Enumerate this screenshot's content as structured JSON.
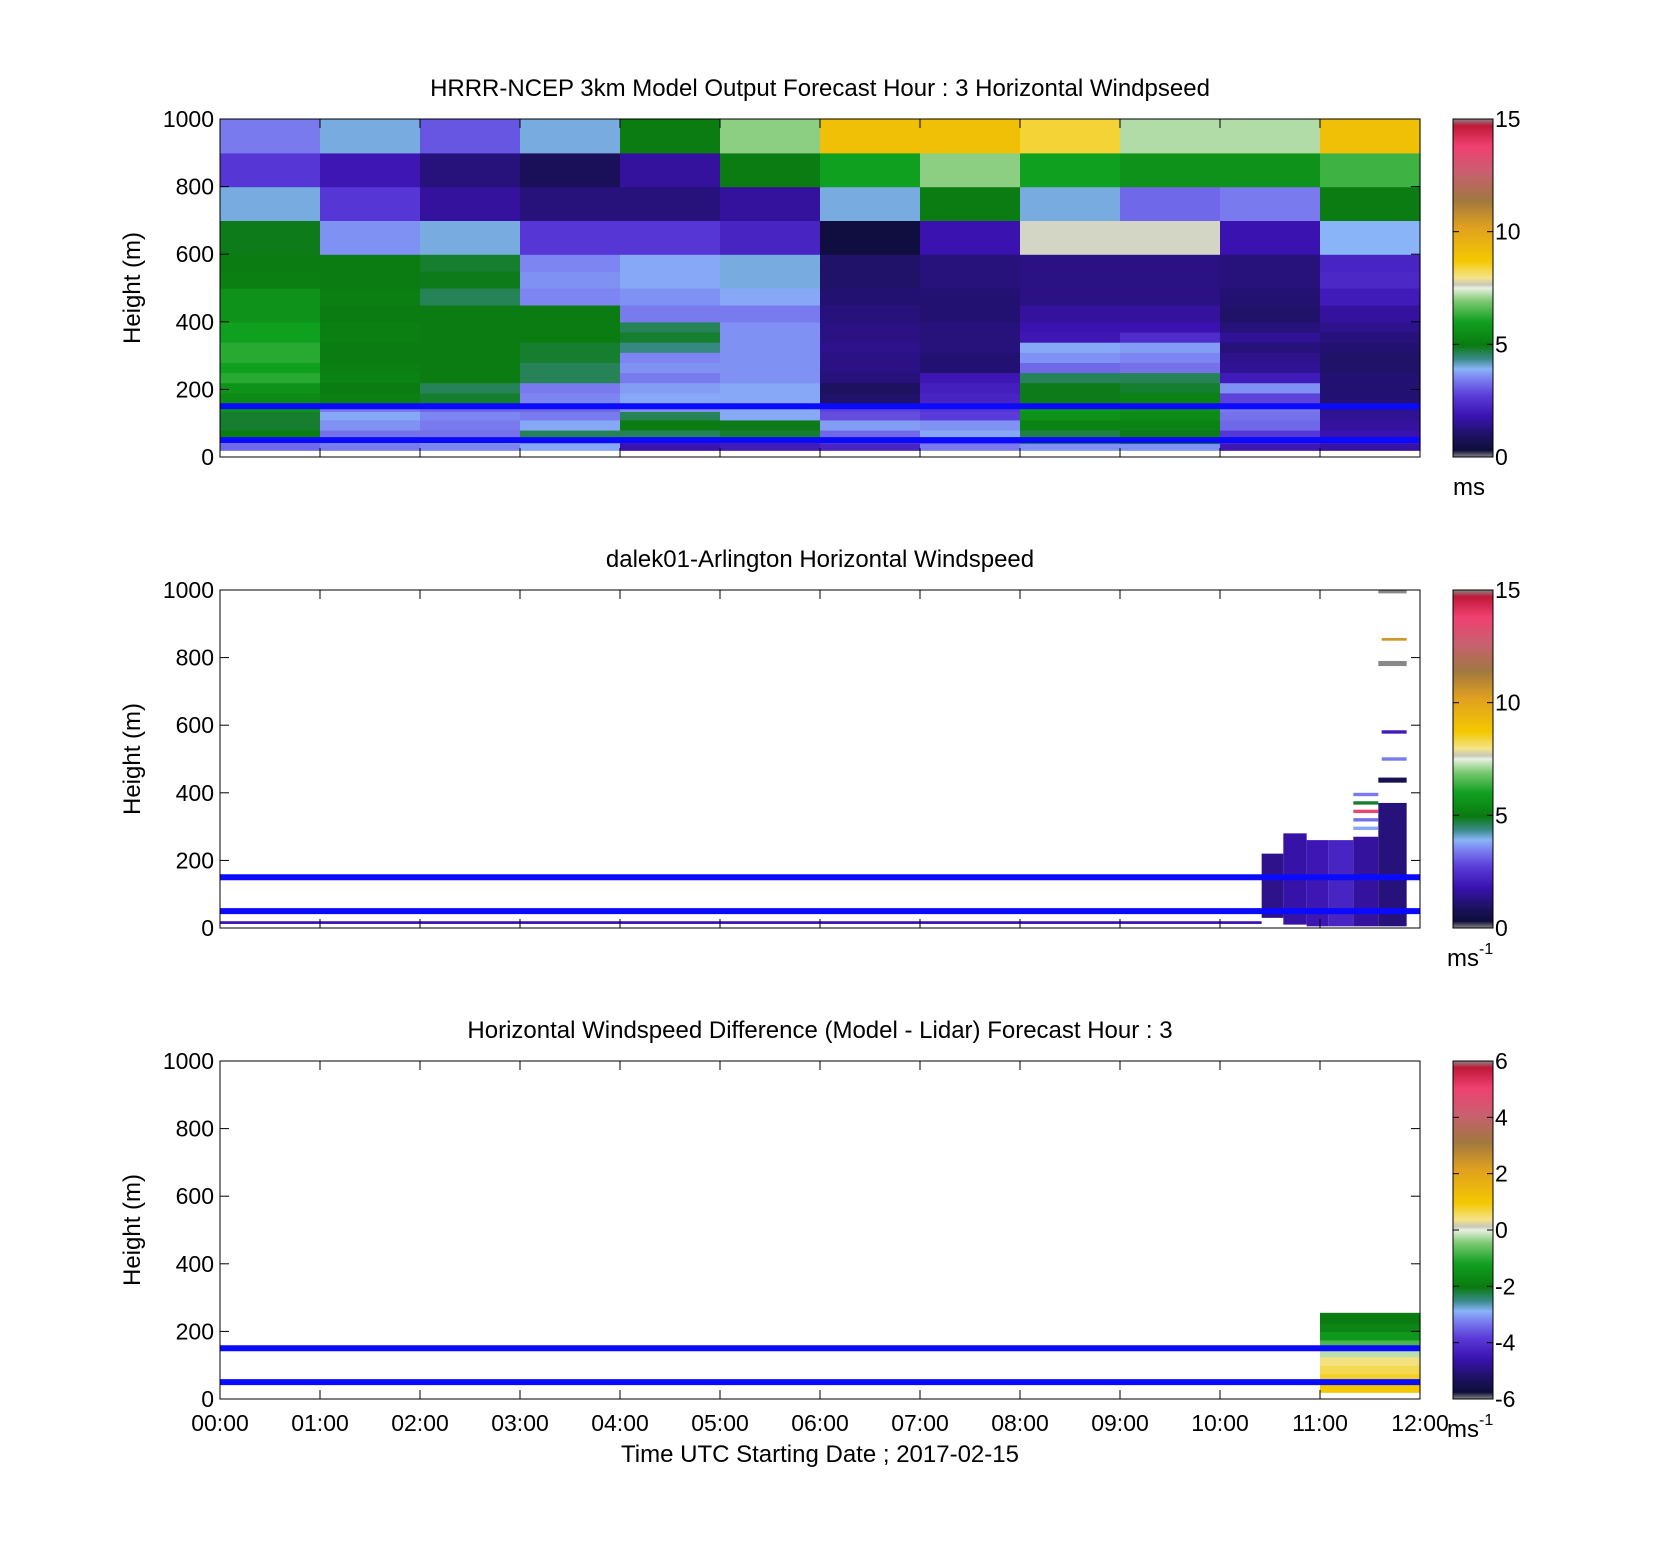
{
  "figure": {
    "xlabel": "Time UTC  Starting Date ; 2017-02-15",
    "x_ticks": [
      "00:00",
      "01:00",
      "02:00",
      "03:00",
      "04:00",
      "05:00",
      "06:00",
      "07:00",
      "08:00",
      "09:00",
      "10:00",
      "11:00",
      "12:00"
    ]
  },
  "colors": {
    "reference_line": "#0a0aff",
    "windspeed_scale": [
      [
        0.0,
        "#888888"
      ],
      [
        0.02,
        "#0d0d3a"
      ],
      [
        0.06,
        "#1d1160"
      ],
      [
        0.12,
        "#3a12b0"
      ],
      [
        0.18,
        "#5a3ad8"
      ],
      [
        0.23,
        "#7a7ff0"
      ],
      [
        0.26,
        "#8ab4f8"
      ],
      [
        0.29,
        "#3a8a8a"
      ],
      [
        0.33,
        "#0a7a10"
      ],
      [
        0.4,
        "#10a020"
      ],
      [
        0.46,
        "#7ac870"
      ],
      [
        0.5,
        "#e8f0e0"
      ],
      [
        0.51,
        "#c8c8b8"
      ],
      [
        0.53,
        "#f4e48a"
      ],
      [
        0.58,
        "#f4c800"
      ],
      [
        0.68,
        "#e0a020"
      ],
      [
        0.76,
        "#a07840"
      ],
      [
        0.84,
        "#c86070"
      ],
      [
        0.92,
        "#f04070"
      ],
      [
        0.98,
        "#c01838"
      ],
      [
        1.0,
        "#888888"
      ]
    ]
  },
  "chart_data": [
    {
      "type": "heatmap",
      "title": "HRRR-NCEP 3km Model Output   Forecast Hour : 3 Horizontal Windpseed",
      "ylabel": "Height (m)",
      "xlim": [
        "00:00",
        "12:00"
      ],
      "ylim": [
        0,
        1000
      ],
      "y_ticks": [
        0,
        200,
        400,
        600,
        800,
        1000
      ],
      "colorbar": {
        "min": 0,
        "max": 15,
        "ticks": [
          0,
          5,
          10,
          15
        ],
        "unit": "ms",
        "unit_sup": ""
      },
      "reference_lines_height_m": [
        50,
        150
      ],
      "time_columns": [
        "00:00",
        "01:00",
        "02:00",
        "03:00",
        "04:00",
        "05:00",
        "06:00",
        "07:00",
        "08:00",
        "09:00",
        "10:00",
        "11:00"
      ],
      "height_bins_m": [
        [
          20,
          40
        ],
        [
          40,
          60
        ],
        [
          60,
          80
        ],
        [
          80,
          110
        ],
        [
          110,
          135
        ],
        [
          135,
          160
        ],
        [
          160,
          190
        ],
        [
          190,
          220
        ],
        [
          220,
          250
        ],
        [
          250,
          280
        ],
        [
          280,
          310
        ],
        [
          310,
          340
        ],
        [
          340,
          370
        ],
        [
          370,
          400
        ],
        [
          400,
          450
        ],
        [
          450,
          500
        ],
        [
          500,
          550
        ],
        [
          550,
          600
        ],
        [
          600,
          700
        ],
        [
          700,
          800
        ],
        [
          800,
          900
        ],
        [
          900,
          1000
        ]
      ],
      "windspeed_ms": [
        [
          3.2,
          3.4,
          3.5,
          3.8,
          1.8,
          2.0,
          2.2,
          3.4,
          3.6,
          3.6,
          1.9,
          1.7
        ],
        [
          3.4,
          3.6,
          3.8,
          3.6,
          1.9,
          2.1,
          2.6,
          3.0,
          4.6,
          4.8,
          2.3,
          2.0
        ],
        [
          5.0,
          3.3,
          3.3,
          4.6,
          4.6,
          4.8,
          3.2,
          3.8,
          4.7,
          4.9,
          2.6,
          1.8
        ],
        [
          4.8,
          3.6,
          3.4,
          3.8,
          5.0,
          4.9,
          3.7,
          3.6,
          5.2,
          5.2,
          3.2,
          1.6
        ],
        [
          4.8,
          3.8,
          3.5,
          3.4,
          4.6,
          3.8,
          2.9,
          2.7,
          5.6,
          5.4,
          3.3,
          1.5
        ],
        [
          5.6,
          3.4,
          3.2,
          3.2,
          3.6,
          3.8,
          2.8,
          2.6,
          5.8,
          5.6,
          3.4,
          1.4
        ],
        [
          5.4,
          5.1,
          4.8,
          3.5,
          3.8,
          3.8,
          1.0,
          2.2,
          4.9,
          5.2,
          2.8,
          1.1
        ],
        [
          5.6,
          5.0,
          4.6,
          3.4,
          3.7,
          3.8,
          0.9,
          2.1,
          4.9,
          4.8,
          3.6,
          1.1
        ],
        [
          6.2,
          5.2,
          5.0,
          4.6,
          3.4,
          3.6,
          1.2,
          1.9,
          4.6,
          4.6,
          2.0,
          1.1
        ],
        [
          6.0,
          5.1,
          5.0,
          4.6,
          3.6,
          3.6,
          1.3,
          1.1,
          3.2,
          3.3,
          1.5,
          1.0
        ],
        [
          6.2,
          5.0,
          5.0,
          4.8,
          3.5,
          3.6,
          1.3,
          1.1,
          3.6,
          3.5,
          1.4,
          1.0
        ],
        [
          6.2,
          5.0,
          5.0,
          4.8,
          4.4,
          3.6,
          1.4,
          1.2,
          3.8,
          3.7,
          1.2,
          1.1
        ],
        [
          6.0,
          5.1,
          5.0,
          5.0,
          4.8,
          3.6,
          1.3,
          1.2,
          1.9,
          2.4,
          1.5,
          1.2
        ],
        [
          6.0,
          5.1,
          5.0,
          5.0,
          4.6,
          3.6,
          1.3,
          1.2,
          1.8,
          1.8,
          1.2,
          1.4
        ],
        [
          5.6,
          5.0,
          5.0,
          5.0,
          3.4,
          3.4,
          1.2,
          1.1,
          1.6,
          1.6,
          1.0,
          1.6
        ],
        [
          5.6,
          5.1,
          4.6,
          3.5,
          3.6,
          3.8,
          1.1,
          1.1,
          1.3,
          1.3,
          1.1,
          2.0
        ],
        [
          5.1,
          5.0,
          4.9,
          3.6,
          3.8,
          4.0,
          1.0,
          1.2,
          1.3,
          1.3,
          1.2,
          2.3
        ],
        [
          5.0,
          5.0,
          4.8,
          3.5,
          3.8,
          4.0,
          1.0,
          1.2,
          1.3,
          1.3,
          1.2,
          2.2
        ],
        [
          4.9,
          3.6,
          4.0,
          2.6,
          2.6,
          2.2,
          0.4,
          1.8,
          7.6,
          7.6,
          1.8,
          3.9
        ],
        [
          4.0,
          2.6,
          1.6,
          1.2,
          1.2,
          1.6,
          4.0,
          5.0,
          4.0,
          3.2,
          3.4,
          5.0
        ],
        [
          2.6,
          1.9,
          1.2,
          0.8,
          1.6,
          5.0,
          6.0,
          7.0,
          6.0,
          5.6,
          5.6,
          6.4
        ],
        [
          3.4,
          4.0,
          3.0,
          4.0,
          5.0,
          7.0,
          9.0,
          9.0,
          8.4,
          7.2,
          7.2,
          9.0
        ]
      ]
    },
    {
      "type": "heatmap",
      "title": "dalek01-Arlington  Horizontal Windspeed",
      "ylabel": "Height (m)",
      "xlim": [
        "00:00",
        "12:00"
      ],
      "ylim": [
        0,
        1000
      ],
      "y_ticks": [
        0,
        200,
        400,
        600,
        800,
        1000
      ],
      "colorbar": {
        "min": 0,
        "max": 15,
        "ticks": [
          0,
          5,
          10,
          15
        ],
        "unit": "ms",
        "unit_sup": "-1"
      },
      "reference_lines_height_m": [
        50,
        150
      ],
      "lidar_segments": [
        {
          "t0": "00:00",
          "t1": "10:25",
          "h0": 12,
          "h1": 20,
          "ms": 1.8
        },
        {
          "t0": "10:25",
          "t1": "10:38",
          "h0": 30,
          "h1": 220,
          "ms": 1.4
        },
        {
          "t0": "10:38",
          "t1": "10:52",
          "h0": 10,
          "h1": 280,
          "ms": 1.7
        },
        {
          "t0": "10:52",
          "t1": "11:05",
          "h0": 5,
          "h1": 260,
          "ms": 1.9
        },
        {
          "t0": "11:05",
          "t1": "11:20",
          "h0": 5,
          "h1": 260,
          "ms": 2.2
        },
        {
          "t0": "11:20",
          "t1": "11:35",
          "h0": 5,
          "h1": 270,
          "ms": 1.6
        },
        {
          "t0": "11:35",
          "t1": "11:52",
          "h0": 5,
          "h1": 370,
          "ms": 1.2
        },
        {
          "t0": "11:35",
          "t1": "11:52",
          "h0": 430,
          "h1": 445,
          "ms": 0.7
        },
        {
          "t0": "11:37",
          "t1": "11:52",
          "h0": 495,
          "h1": 505,
          "ms": 3.4
        },
        {
          "t0": "11:37",
          "t1": "11:52",
          "h0": 575,
          "h1": 585,
          "ms": 2.0
        },
        {
          "t0": "11:35",
          "t1": "11:52",
          "h0": 775,
          "h1": 790,
          "ms": 15.0
        },
        {
          "t0": "11:37",
          "t1": "11:52",
          "h0": 850,
          "h1": 858,
          "ms": 10.5
        },
        {
          "t0": "11:35",
          "t1": "11:52",
          "h0": 990,
          "h1": 1000,
          "ms": 15.0
        },
        {
          "t0": "11:20",
          "t1": "11:35",
          "h0": 390,
          "h1": 400,
          "ms": 3.4
        },
        {
          "t0": "11:20",
          "t1": "11:35",
          "h0": 365,
          "h1": 375,
          "ms": 4.8
        },
        {
          "t0": "11:20",
          "t1": "11:35",
          "h0": 340,
          "h1": 350,
          "ms": 13.5
        },
        {
          "t0": "11:20",
          "t1": "11:35",
          "h0": 315,
          "h1": 325,
          "ms": 3.3
        },
        {
          "t0": "11:20",
          "t1": "11:35",
          "h0": 290,
          "h1": 300,
          "ms": 3.8
        }
      ]
    },
    {
      "type": "heatmap",
      "title": "Horizontal Windspeed Difference (Model - Lidar) Forecast Hour : 3",
      "ylabel": "Height (m)",
      "xlim": [
        "00:00",
        "12:00"
      ],
      "ylim": [
        0,
        1000
      ],
      "y_ticks": [
        0,
        200,
        400,
        600,
        800,
        1000
      ],
      "colorbar": {
        "min": -6,
        "max": 6,
        "ticks": [
          -6,
          -4,
          -2,
          0,
          2,
          4,
          6
        ],
        "unit": "ms",
        "unit_sup": "-1"
      },
      "reference_lines_height_m": [
        50,
        150
      ],
      "time_columns": [
        "11:00"
      ],
      "height_bins_m": [
        [
          20,
          45
        ],
        [
          45,
          75
        ],
        [
          75,
          100
        ],
        [
          100,
          125
        ],
        [
          125,
          150
        ],
        [
          150,
          175
        ],
        [
          175,
          200
        ],
        [
          200,
          225
        ],
        [
          225,
          255
        ]
      ],
      "difference_ms": [
        [
          1.0
        ],
        [
          0.8
        ],
        [
          0.6
        ],
        [
          0.4
        ],
        [
          -0.2
        ],
        [
          -0.8
        ],
        [
          -1.4
        ],
        [
          -1.8
        ],
        [
          -2.0
        ]
      ]
    }
  ]
}
